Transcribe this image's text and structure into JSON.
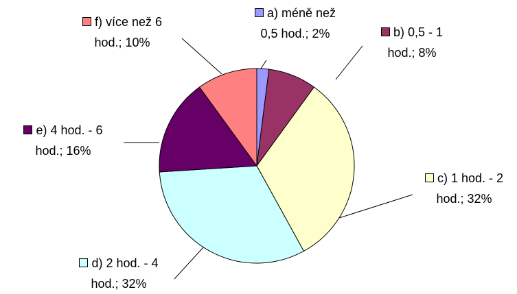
{
  "chart_data": {
    "type": "pie",
    "categories": [
      "a) méně než 0,5 hod.",
      "b) 0,5 - 1 hod.",
      "c) 1 hod. - 2 hod.",
      "d) 2 hod. - 4 hod.",
      "e) 4 hod. - 6 hod.",
      "f) více než 6 hod."
    ],
    "values": [
      2,
      8,
      32,
      32,
      16,
      10
    ],
    "value_labels": [
      "2%",
      "8%",
      "32%",
      "32%",
      "16%",
      "10%"
    ],
    "separator": "; ",
    "colors": [
      "#9999ff",
      "#993366",
      "#ffffcc",
      "#ccffff",
      "#660066",
      "#ff8080"
    ]
  }
}
